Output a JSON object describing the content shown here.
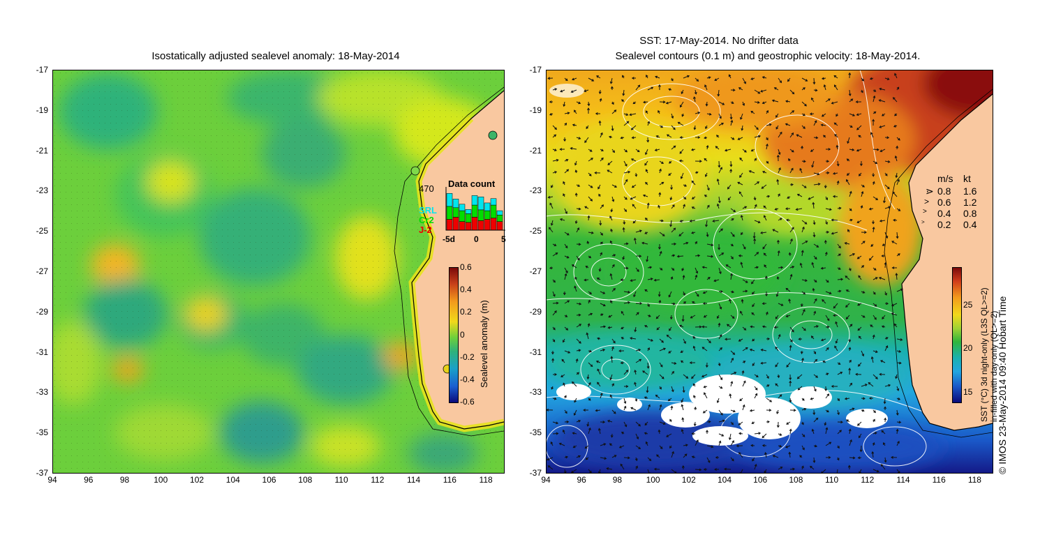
{
  "left_panel": {
    "title": "Isostatically adjusted sealevel anomaly: 18-May-2014",
    "y_ticks": [
      "-17",
      "-19",
      "-21",
      "-23",
      "-25",
      "-27",
      "-29",
      "-31",
      "-33",
      "-35",
      "-37"
    ],
    "x_ticks": [
      "94",
      "96",
      "98",
      "100",
      "102",
      "104",
      "106",
      "108",
      "110",
      "112",
      "114",
      "116",
      "118"
    ],
    "colorbar": {
      "label": "Sealevel anomaly (m)",
      "ticks": [
        "0.6",
        "0.4",
        "0.2",
        "0",
        "-0.2",
        "-0.4",
        "-0.6"
      ]
    },
    "data_count": {
      "title": "Data count",
      "max_label": "470",
      "series_labels": [
        "SRL",
        "Cr2",
        "J-2"
      ],
      "series_colors": [
        "#00e5ee",
        "#00dd00",
        "#ee0000"
      ],
      "x_ticks": [
        "-5d",
        "0",
        "5"
      ],
      "bars": [
        {
          "j2": 0.25,
          "cr2": 0.3,
          "srl": 0.3
        },
        {
          "j2": 0.3,
          "cr2": 0.22,
          "srl": 0.2
        },
        {
          "j2": 0.2,
          "cr2": 0.25,
          "srl": 0.15
        },
        {
          "j2": 0.18,
          "cr2": 0.2,
          "srl": 0.1
        },
        {
          "j2": 0.3,
          "cr2": 0.28,
          "srl": 0.22
        },
        {
          "j2": 0.22,
          "cr2": 0.25,
          "srl": 0.3
        },
        {
          "j2": 0.25,
          "cr2": 0.2,
          "srl": 0.18
        },
        {
          "j2": 0.28,
          "cr2": 0.3,
          "srl": 0.15
        },
        {
          "j2": 0.2,
          "cr2": 0.15,
          "srl": 0.1
        }
      ]
    }
  },
  "right_panel": {
    "title_line1": "SST: 17-May-2014. No drifter data",
    "title_line2": "Sealevel contours (0.1 m) and geostrophic velocity: 18-May-2014.",
    "y_ticks": [
      "-17",
      "-19",
      "-21",
      "-23",
      "-25",
      "-27",
      "-29",
      "-31",
      "-33",
      "-35",
      "-37"
    ],
    "x_ticks": [
      "94",
      "96",
      "98",
      "100",
      "102",
      "104",
      "106",
      "108",
      "110",
      "112",
      "114",
      "116",
      "118"
    ],
    "velocity_legend": {
      "header_ms": "m/s",
      "header_kt": "kt",
      "rows": [
        {
          "ms": "0.8",
          "kt": "1.6"
        },
        {
          "ms": "0.6",
          "kt": "1.2"
        },
        {
          "ms": "0.4",
          "kt": "0.8"
        },
        {
          "ms": "0.2",
          "kt": "0.4"
        }
      ]
    },
    "colorbar": {
      "label_line1": "SST (°C) 3d night-only (L3S QL>=2)",
      "label_line2": "in-filled with day-only (QL>=2)",
      "ticks": [
        "25",
        "20",
        "15"
      ]
    },
    "credit": "© IMOS 23-May-2014 09:40 Hobart Time"
  },
  "colors": {
    "land": "#f9c8a0",
    "coast": "#000000",
    "contour": "#ffffff"
  }
}
